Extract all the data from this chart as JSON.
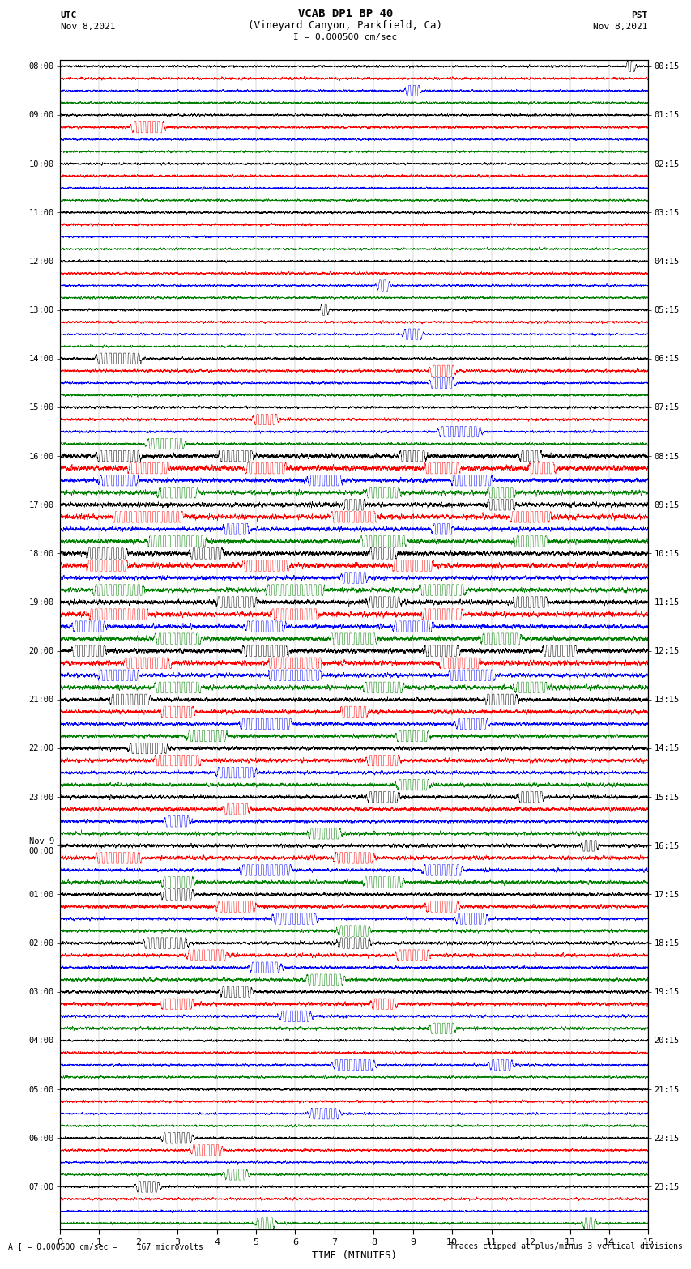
{
  "title_line1": "VCAB DP1 BP 40",
  "title_line2": "(Vineyard Canyon, Parkfield, Ca)",
  "scale_label": "I = 0.000500 cm/sec",
  "left_header": "UTC",
  "left_subheader": "Nov 8,2021",
  "right_header": "PST",
  "right_subheader": "Nov 8,2021",
  "xlabel": "TIME (MINUTES)",
  "footer_left": "A [ = 0.000500 cm/sec =    167 microvolts",
  "footer_right": "Traces clipped at plus/minus 3 vertical divisions",
  "time_minutes": 15,
  "trace_colors": [
    "black",
    "red",
    "blue",
    "green"
  ],
  "utc_labels": [
    "08:00",
    "09:00",
    "10:00",
    "11:00",
    "12:00",
    "13:00",
    "14:00",
    "15:00",
    "16:00",
    "17:00",
    "18:00",
    "19:00",
    "20:00",
    "21:00",
    "22:00",
    "23:00",
    "Nov 9\n00:00",
    "01:00",
    "02:00",
    "03:00",
    "04:00",
    "05:00",
    "06:00",
    "07:00"
  ],
  "pst_labels": [
    "00:15",
    "01:15",
    "02:15",
    "03:15",
    "04:15",
    "05:15",
    "06:15",
    "07:15",
    "08:15",
    "09:15",
    "10:15",
    "11:15",
    "12:15",
    "13:15",
    "14:15",
    "15:15",
    "16:15",
    "17:15",
    "18:15",
    "19:15",
    "20:15",
    "21:15",
    "22:15",
    "23:15"
  ],
  "n_hours": 24,
  "traces_per_hour": 4,
  "background_color": "white",
  "noise_base_amplitude": 0.25,
  "sample_rate": 100
}
